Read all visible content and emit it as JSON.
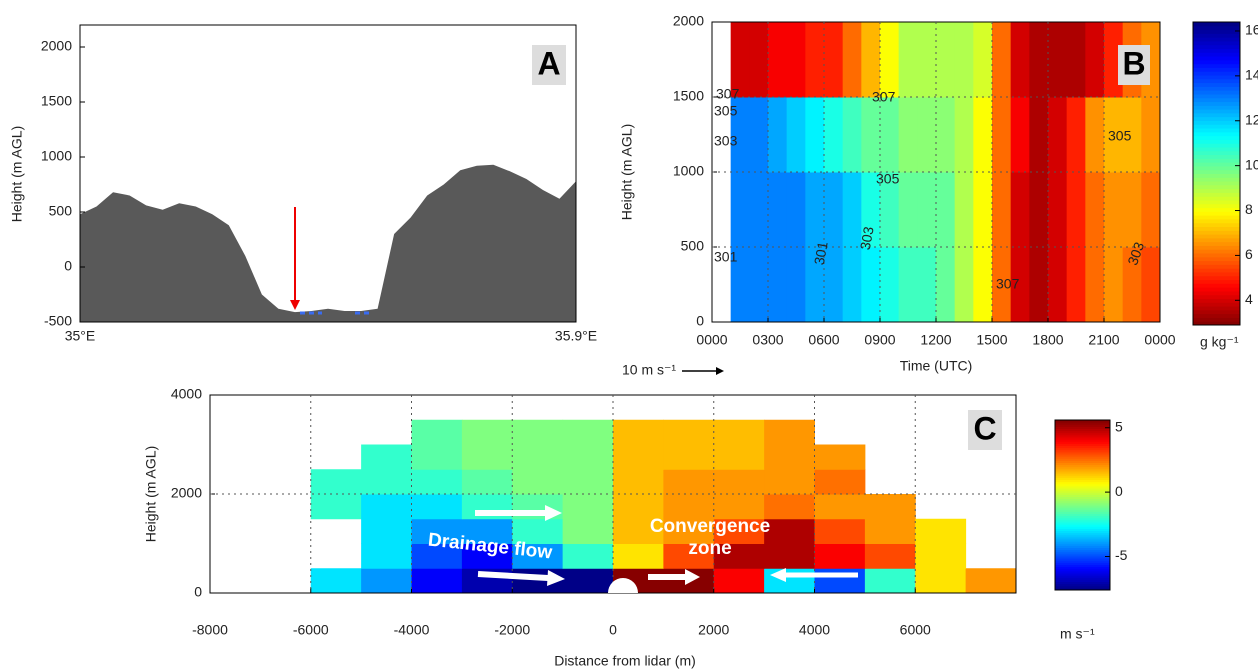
{
  "chart_data": [
    {
      "type": "area",
      "panel_label": "A",
      "y_label": "Height (m AGL)",
      "x": [
        35.0,
        35.03,
        35.06,
        35.09,
        35.12,
        35.15,
        35.18,
        35.21,
        35.24,
        35.27,
        35.3,
        35.33,
        35.36,
        35.39,
        35.42,
        35.45,
        35.48,
        35.51,
        35.54,
        35.57,
        35.6,
        35.63,
        35.66,
        35.69,
        35.72,
        35.75,
        35.78,
        35.81,
        35.84,
        35.87,
        35.9
      ],
      "values": [
        480,
        550,
        680,
        650,
        560,
        520,
        580,
        550,
        480,
        380,
        100,
        -250,
        -380,
        -410,
        -400,
        -380,
        -400,
        -400,
        -380,
        300,
        450,
        650,
        750,
        880,
        920,
        930,
        870,
        800,
        700,
        620,
        780
      ],
      "color": "#595959",
      "xlim": [
        35,
        35.9
      ],
      "xticks": [
        {
          "value": 35,
          "label": "35°E"
        },
        {
          "value": 35.9,
          "label": "35.9°E"
        }
      ],
      "ylim": [
        -500,
        2200
      ],
      "yticks": [
        -500,
        0,
        500,
        1000,
        1500,
        2000
      ]
    },
    {
      "type": "heatmap",
      "panel_label": "B",
      "x_label": "Time (UTC)",
      "y_label": "Height (m AGL)",
      "x_edges": [
        0,
        1,
        2,
        3,
        4,
        5,
        6,
        7,
        8,
        9,
        10,
        11,
        12,
        13,
        14,
        15,
        16,
        17,
        18,
        19,
        20,
        21,
        22,
        23,
        24
      ],
      "y_edges": [
        0,
        500,
        1000,
        1500,
        2000
      ],
      "z": [
        [
          null,
          13,
          13,
          13,
          13,
          12.5,
          12.5,
          12,
          11.5,
          11,
          10.5,
          10.5,
          10,
          9,
          8,
          6,
          4,
          3.5,
          4,
          5,
          6,
          6.5,
          6,
          5.5
        ],
        [
          null,
          13,
          13,
          13,
          13,
          12.5,
          12.5,
          12,
          11,
          10.5,
          10,
          10,
          10,
          9,
          8,
          6,
          4,
          3.5,
          4,
          5,
          6,
          6.5,
          6.5,
          6
        ],
        [
          null,
          13,
          13,
          12.5,
          12,
          11.5,
          11,
          10.5,
          10,
          10,
          9.5,
          9.5,
          9.5,
          9,
          8,
          6,
          4.5,
          3.5,
          4,
          5,
          6.5,
          7,
          7,
          6.5
        ],
        [
          null,
          4,
          4,
          4.5,
          4.5,
          5,
          5,
          6,
          7,
          8,
          9,
          9,
          9,
          9,
          8.5,
          6,
          4,
          3.5,
          3.5,
          3.5,
          4,
          5,
          6,
          6.5
        ]
      ],
      "colormap": "jet_r",
      "clim": [
        2.9,
        16.4
      ],
      "cticks": [
        4,
        6,
        8,
        10,
        12,
        14,
        16
      ],
      "colorbar_label": "g kg⁻¹",
      "xlim": [
        0,
        24
      ],
      "xticks": [
        {
          "value": 0,
          "label": "0000"
        },
        {
          "value": 3,
          "label": "0300"
        },
        {
          "value": 6,
          "label": "0600"
        },
        {
          "value": 9,
          "label": "0900"
        },
        {
          "value": 12,
          "label": "1200"
        },
        {
          "value": 15,
          "label": "1500"
        },
        {
          "value": 18,
          "label": "1800"
        },
        {
          "value": 21,
          "label": "2100"
        },
        {
          "value": 24,
          "label": "0000"
        }
      ],
      "ylim": [
        0,
        2000
      ],
      "yticks": [
        0,
        500,
        1000,
        1500,
        2000
      ],
      "grid": true,
      "contour_labels": [
        "301",
        "303",
        "305",
        "307",
        "307",
        "305",
        "303",
        "301",
        "307",
        "305",
        "303"
      ],
      "reference_vector_label": "10 m s⁻¹"
    },
    {
      "type": "heatmap",
      "panel_label": "C",
      "x_label": "Distance from lidar (m)",
      "y_label": "Height (m AGL)",
      "x_edges": [
        -8000,
        -7000,
        -6000,
        -5000,
        -4000,
        -3000,
        -2000,
        -1000,
        0,
        1000,
        2000,
        3000,
        4000,
        5000,
        6000,
        7000,
        8000
      ],
      "y_edges": [
        0,
        500,
        1000,
        1500,
        2000,
        2500,
        3000,
        3500
      ],
      "z": [
        [
          null,
          null,
          -3,
          -4,
          -6,
          -7,
          -7.5,
          -7.5,
          5.5,
          5.5,
          4,
          -3,
          -5,
          -2,
          1,
          2
        ],
        [
          null,
          null,
          null,
          -3,
          -5,
          -6,
          -4,
          -2,
          1,
          3,
          5,
          5,
          4,
          3,
          1,
          null
        ],
        [
          null,
          null,
          null,
          -3,
          -4,
          -4,
          -2,
          -1,
          1.5,
          2,
          3,
          5,
          3,
          2,
          1,
          null
        ],
        [
          null,
          null,
          -2,
          -3,
          -3,
          -2,
          -1.5,
          -1,
          1.5,
          2,
          2,
          2.5,
          2,
          2,
          null,
          null
        ],
        [
          null,
          null,
          -2,
          -2,
          -2,
          -1.5,
          -1,
          -1,
          1.5,
          2,
          2,
          2,
          2.5,
          null,
          null,
          null
        ],
        [
          null,
          null,
          null,
          -2,
          -1.5,
          -1,
          -1,
          -1,
          1.5,
          1.5,
          1.5,
          2,
          2,
          null,
          null,
          null
        ],
        [
          null,
          null,
          null,
          null,
          -1.5,
          -1,
          -1,
          -1,
          1.5,
          1.5,
          1.5,
          2,
          null,
          null,
          null,
          null
        ]
      ],
      "colormap": "jet",
      "clim": [
        -7.6,
        5.6
      ],
      "cticks": [
        -5,
        0,
        5
      ],
      "colorbar_label": "m s⁻¹",
      "xlim": [
        -8000,
        8000
      ],
      "xticks": [
        -8000,
        -6000,
        -4000,
        -2000,
        0,
        2000,
        4000,
        6000
      ],
      "ylim": [
        0,
        4000
      ],
      "yticks": [
        0,
        2000,
        4000
      ],
      "grid": true,
      "annotations": [
        "Drainage flow",
        "Convergence zone"
      ]
    }
  ]
}
